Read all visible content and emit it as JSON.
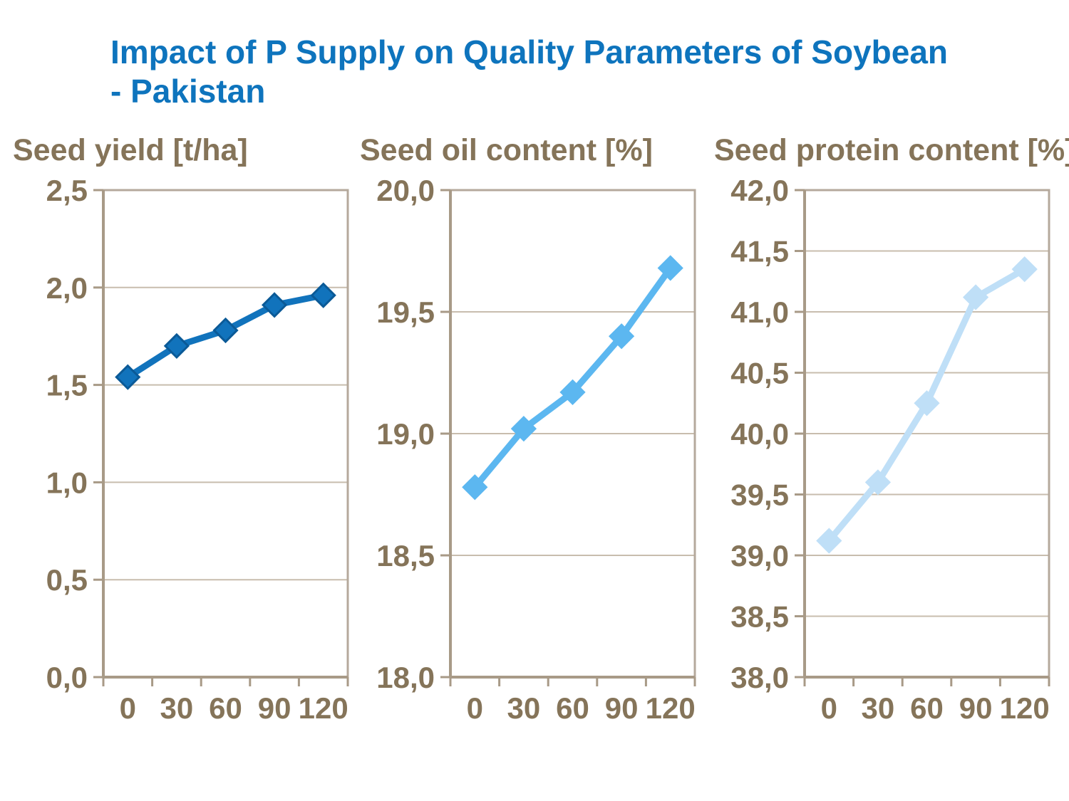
{
  "title": {
    "line1": "Impact of P Supply on Quality Parameters of Soybean",
    "line2": "- Pakistan"
  },
  "colors": {
    "title_blue": "#0E74BD",
    "axis_text_brown": "#857459",
    "plot_frame_tan": "#B5A99C",
    "gridline_tan": "#C8BDAE",
    "series_dark_blue": "#1173BC",
    "series_sky_blue": "#5CB7F0",
    "series_pale_blue": "#BFDFF7",
    "background": "#FFFFFF"
  },
  "chart_data": [
    {
      "type": "line",
      "title": "Seed yield [t/ha]",
      "x": [
        0,
        30,
        60,
        90,
        120
      ],
      "x_tick_labels": [
        "0",
        "30",
        "60",
        "90",
        "120"
      ],
      "values": [
        1.54,
        1.7,
        1.78,
        1.91,
        1.96
      ],
      "ylim": [
        0.0,
        2.5
      ],
      "ytick_step": 0.5,
      "y_tick_labels": [
        "0,0",
        "0,5",
        "1,0",
        "1,5",
        "2,0",
        "2,5"
      ],
      "xlabel": "",
      "ylabel": "Seed yield [t/ha]",
      "grid": "horizontal",
      "legend": "none",
      "decimal_separator": ",",
      "line_color": "#1173BC",
      "marker_border": "#0B5A97",
      "marker": "diamond"
    },
    {
      "type": "line",
      "title": "Seed oil content [%]",
      "x": [
        0,
        30,
        60,
        90,
        120
      ],
      "x_tick_labels": [
        "0",
        "30",
        "60",
        "90",
        "120"
      ],
      "values": [
        18.78,
        19.02,
        19.17,
        19.4,
        19.68
      ],
      "ylim": [
        18.0,
        20.0
      ],
      "ytick_step": 0.5,
      "y_tick_labels": [
        "18,0",
        "18,5",
        "19,0",
        "19,5",
        "20,0"
      ],
      "xlabel": "",
      "ylabel": "Seed oil content [%]",
      "grid": "horizontal",
      "legend": "none",
      "decimal_separator": ",",
      "line_color": "#5CB7F0",
      "marker_border": "#5CB7F0",
      "marker": "diamond"
    },
    {
      "type": "line",
      "title": "Seed protein content [%]",
      "x": [
        0,
        30,
        60,
        90,
        120
      ],
      "x_tick_labels": [
        "0",
        "30",
        "60",
        "90",
        "120"
      ],
      "values": [
        39.12,
        39.6,
        40.25,
        41.12,
        41.35
      ],
      "ylim": [
        38.0,
        42.0
      ],
      "ytick_step": 0.5,
      "y_tick_labels": [
        "38,0",
        "38,5",
        "39,0",
        "39,5",
        "40,0",
        "40,5",
        "41,0",
        "41,5",
        "42,0"
      ],
      "xlabel": "",
      "ylabel": "Seed protein content [%]",
      "grid": "horizontal",
      "legend": "none",
      "decimal_separator": ",",
      "line_color": "#BFDFF7",
      "marker_border": "#BFDFF7",
      "marker": "diamond"
    }
  ]
}
